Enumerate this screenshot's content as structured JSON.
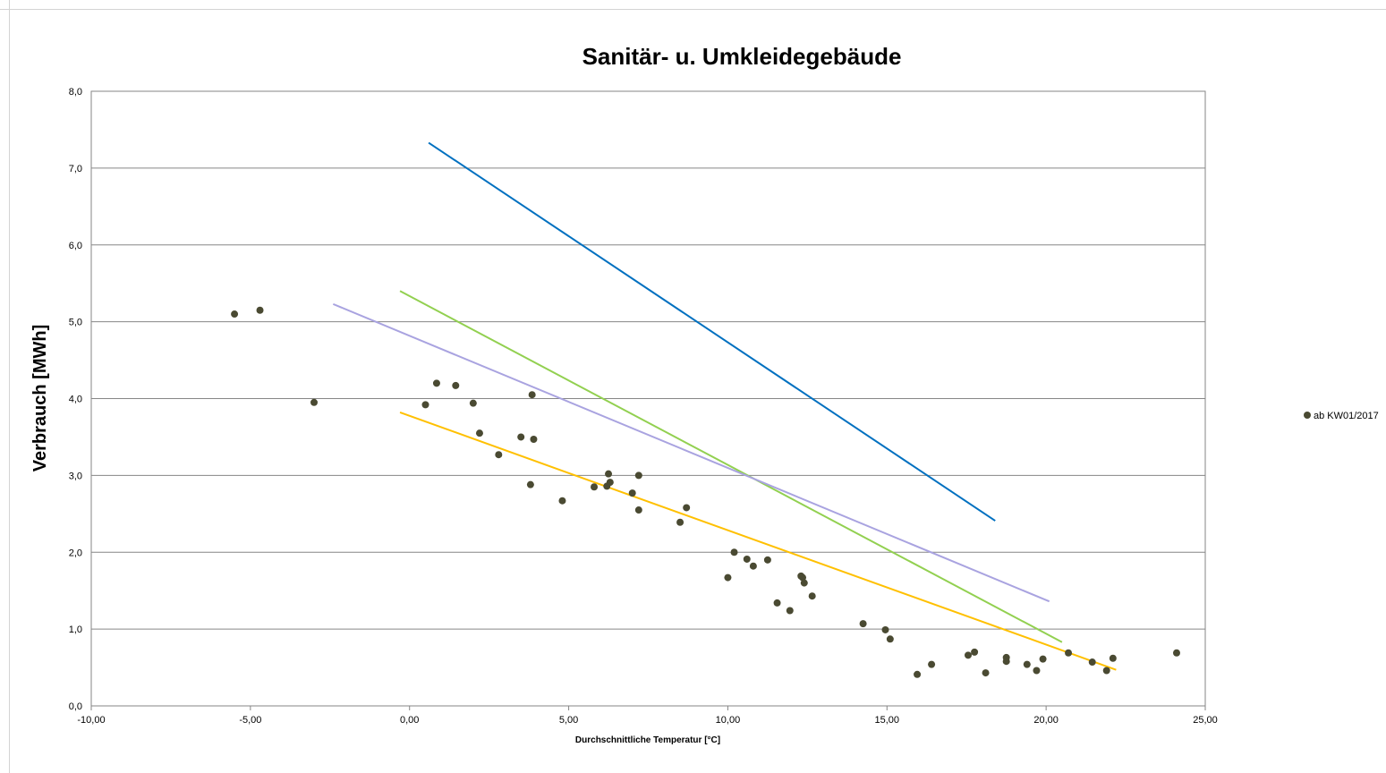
{
  "chart_data": {
    "type": "scatter",
    "title": "Sanitär- u. Umkleidegebäude",
    "xlabel": "Durchschnittliche Temperatur [°C]",
    "ylabel": "Verbrauch [MWh]",
    "xlim": [
      -10,
      25
    ],
    "ylim": [
      0,
      8
    ],
    "x_ticks": [
      "-10,00",
      "-5,00",
      "0,00",
      "5,00",
      "10,00",
      "15,00",
      "20,00",
      "25,00"
    ],
    "y_ticks": [
      "0,0",
      "1,0",
      "2,0",
      "3,0",
      "4,0",
      "5,0",
      "6,0",
      "7,0",
      "8,0"
    ],
    "grid": "horizontal",
    "legend_position": "right",
    "series": [
      {
        "name": "ab KW01/2017",
        "color": "#4a4a32",
        "points": [
          [
            -5.5,
            5.1
          ],
          [
            -4.7,
            5.15
          ],
          [
            -3.0,
            3.95
          ],
          [
            0.5,
            3.92
          ],
          [
            0.85,
            4.2
          ],
          [
            1.45,
            4.17
          ],
          [
            2.0,
            3.94
          ],
          [
            2.2,
            3.55
          ],
          [
            2.8,
            3.27
          ],
          [
            3.5,
            3.5
          ],
          [
            3.8,
            2.88
          ],
          [
            3.85,
            4.05
          ],
          [
            3.9,
            3.47
          ],
          [
            4.8,
            2.67
          ],
          [
            5.8,
            2.85
          ],
          [
            6.2,
            2.86
          ],
          [
            6.25,
            3.02
          ],
          [
            6.3,
            2.91
          ],
          [
            7.0,
            2.77
          ],
          [
            7.2,
            3.0
          ],
          [
            7.2,
            2.55
          ],
          [
            8.5,
            2.39
          ],
          [
            8.7,
            2.58
          ],
          [
            10.0,
            1.67
          ],
          [
            10.2,
            2.0
          ],
          [
            10.6,
            1.91
          ],
          [
            10.8,
            1.82
          ],
          [
            11.25,
            1.9
          ],
          [
            11.55,
            1.34
          ],
          [
            11.95,
            1.24
          ],
          [
            12.3,
            1.69
          ],
          [
            12.4,
            1.6
          ],
          [
            12.35,
            1.67
          ],
          [
            12.65,
            1.43
          ],
          [
            14.25,
            1.07
          ],
          [
            14.95,
            0.99
          ],
          [
            15.1,
            0.87
          ],
          [
            15.95,
            0.41
          ],
          [
            16.4,
            0.54
          ],
          [
            17.55,
            0.66
          ],
          [
            17.75,
            0.7
          ],
          [
            18.1,
            0.43
          ],
          [
            18.75,
            0.58
          ],
          [
            18.75,
            0.63
          ],
          [
            19.4,
            0.54
          ],
          [
            19.7,
            0.46
          ],
          [
            19.9,
            0.61
          ],
          [
            20.7,
            0.69
          ],
          [
            21.45,
            0.57
          ],
          [
            21.9,
            0.46
          ],
          [
            22.1,
            0.62
          ],
          [
            24.1,
            0.69
          ]
        ]
      }
    ],
    "lines": [
      {
        "color": "#0070c0",
        "points": [
          [
            0.6,
            7.33
          ],
          [
            18.4,
            2.41
          ]
        ]
      },
      {
        "color": "#92d050",
        "points": [
          [
            -0.3,
            5.4
          ],
          [
            20.5,
            0.83
          ]
        ]
      },
      {
        "color": "#a9a3e0",
        "points": [
          [
            -2.4,
            5.23
          ],
          [
            20.1,
            1.36
          ]
        ]
      },
      {
        "color": "#ffc000",
        "points": [
          [
            -0.3,
            3.82
          ],
          [
            22.2,
            0.47
          ]
        ]
      }
    ]
  }
}
